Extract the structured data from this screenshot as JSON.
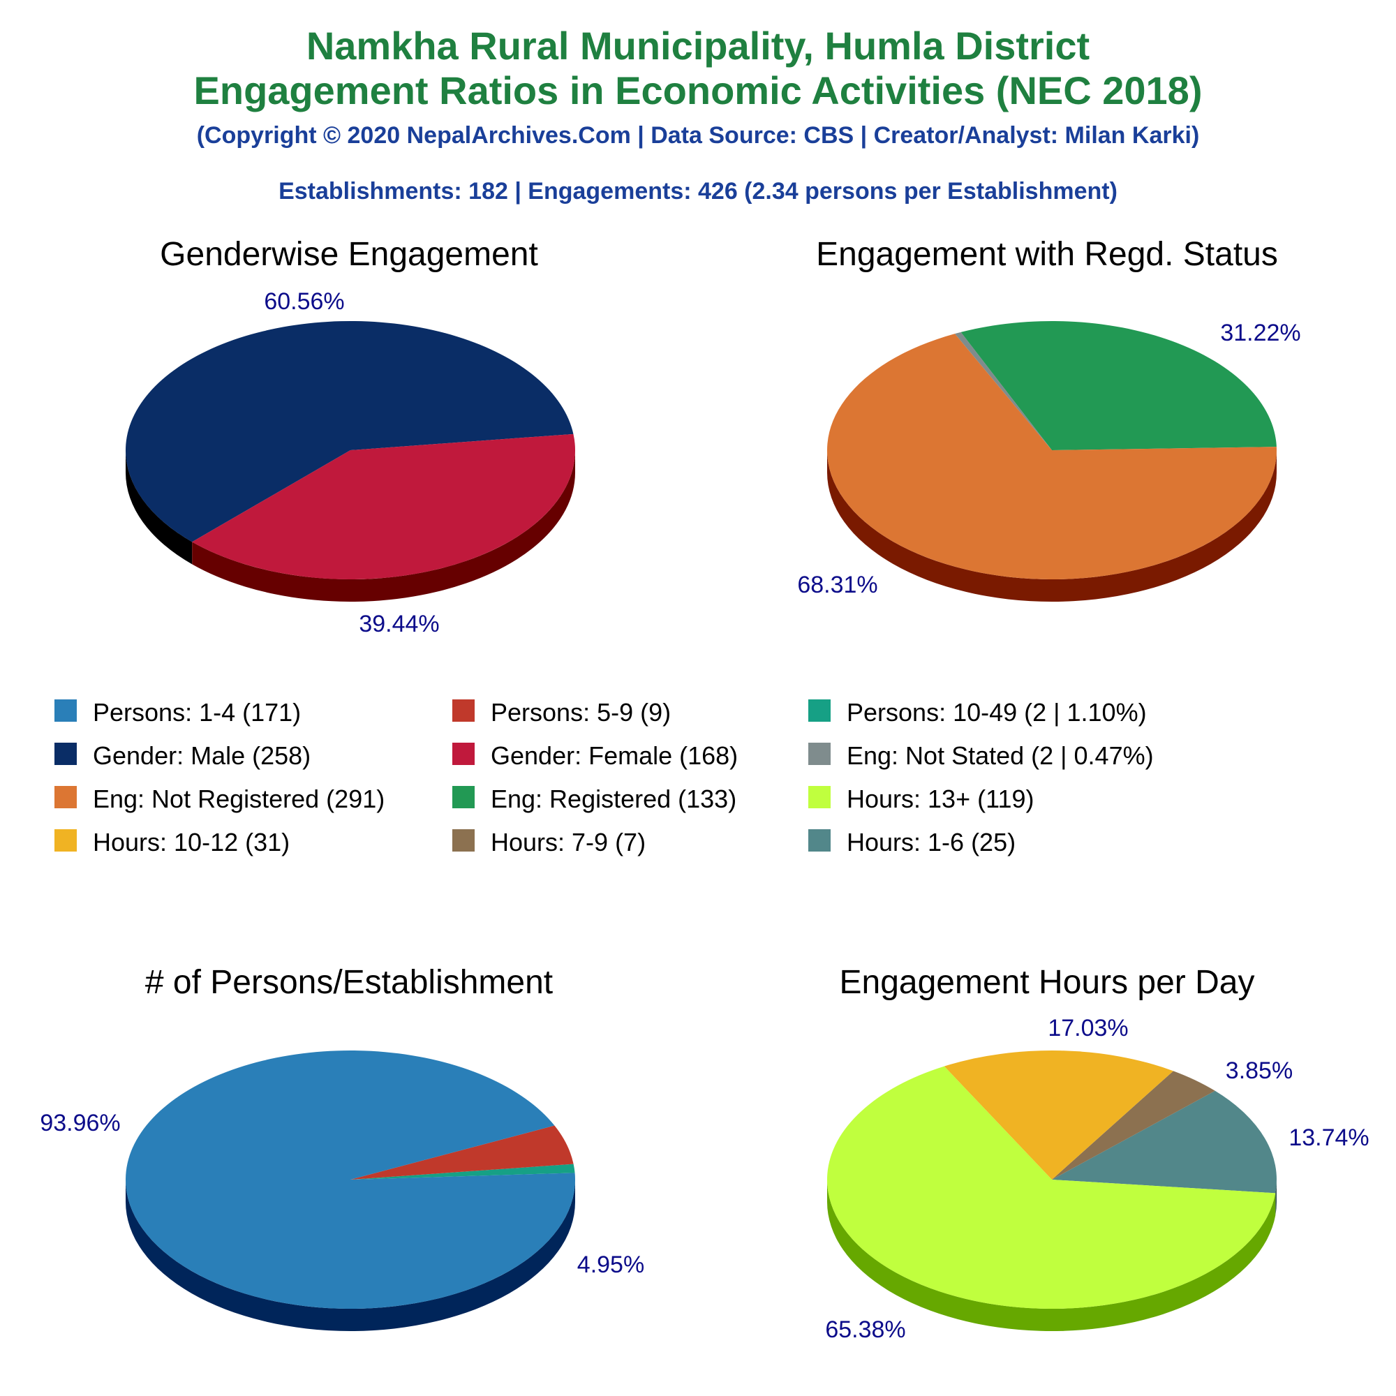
{
  "header": {
    "title_line1": "Namkha Rural Municipality, Humla District",
    "title_line2": "Engagement Ratios in Economic Activities (NEC 2018)",
    "copyright": "(Copyright © 2020 NepalArchives.Com | Data Source: CBS | Creator/Analyst: Milan Karki)",
    "summary": "Establishments: 182 | Engagements: 426 (2.34 persons per Establishment)"
  },
  "legend": [
    {
      "label": "Persons: 1-4 (171)",
      "color": "#2a7fb8"
    },
    {
      "label": "Persons: 5-9 (9)",
      "color": "#c0392b"
    },
    {
      "label": "Persons: 10-49 (2 | 1.10%)",
      "color": "#16a085"
    },
    {
      "label": "Gender: Male (258)",
      "color": "#0a2d66"
    },
    {
      "label": "Gender: Female (168)",
      "color": "#c0193c"
    },
    {
      "label": "Eng: Not Stated (2 | 0.47%)",
      "color": "#7f8c8d"
    },
    {
      "label": "Eng: Not Registered (291)",
      "color": "#dc7633"
    },
    {
      "label": "Eng: Registered (133)",
      "color": "#229954"
    },
    {
      "label": "Hours: 13+ (119)",
      "color": "#c0ff3e"
    },
    {
      "label": "Hours: 10-12 (31)",
      "color": "#f0b323"
    },
    {
      "label": "Hours: 7-9 (7)",
      "color": "#8c7150"
    },
    {
      "label": "Hours: 1-6 (25)",
      "color": "#52878a"
    }
  ],
  "chart_data": [
    {
      "type": "pie",
      "title": "Genderwise Engagement",
      "slices": [
        {
          "category": "Gender: Male",
          "value": 258,
          "percent": 60.56,
          "label": "60.56%",
          "color": "#0a2d66",
          "side": "#000000"
        },
        {
          "category": "Gender: Female",
          "value": 168,
          "percent": 39.44,
          "label": "39.44%",
          "color": "#c0193c",
          "side": "#660000"
        }
      ]
    },
    {
      "type": "pie",
      "title": "Engagement with Regd. Status",
      "slices": [
        {
          "category": "Eng: Registered",
          "value": 133,
          "percent": 31.22,
          "label": "31.22%",
          "color": "#229954",
          "side": "#0f5a2c"
        },
        {
          "category": "Eng: Not Stated",
          "value": 2,
          "percent": 0.47,
          "label": "",
          "color": "#7f8c8d",
          "side": "#4a5253"
        },
        {
          "category": "Eng: Not Registered",
          "value": 291,
          "percent": 68.31,
          "label": "68.31%",
          "color": "#dc7633",
          "side": "#7a1a00"
        }
      ]
    },
    {
      "type": "pie",
      "title": "# of Persons/Establishment",
      "slices": [
        {
          "category": "Persons: 10-49",
          "value": 2,
          "percent": 1.1,
          "label": "",
          "color": "#16a085",
          "side": "#0b5a4a"
        },
        {
          "category": "Persons: 5-9",
          "value": 9,
          "percent": 4.95,
          "label": "4.95%",
          "color": "#c0392b",
          "side": "#6a0000"
        },
        {
          "category": "Persons: 1-4",
          "value": 171,
          "percent": 93.96,
          "label": "93.96%",
          "color": "#2a7fb8",
          "side": "#00255a"
        }
      ]
    },
    {
      "type": "pie",
      "title": "Engagement Hours per Day",
      "slices": [
        {
          "category": "Hours: 1-6",
          "value": 25,
          "percent": 13.74,
          "label": "13.74%",
          "color": "#52878a",
          "side": "#2a4c4e"
        },
        {
          "category": "Hours: 7-9",
          "value": 7,
          "percent": 3.85,
          "label": "3.85%",
          "color": "#8c7150",
          "side": "#4e3d28"
        },
        {
          "category": "Hours: 10-12",
          "value": 31,
          "percent": 17.03,
          "label": "17.03%",
          "color": "#f0b323",
          "side": "#8a6000"
        },
        {
          "category": "Hours: 13+",
          "value": 119,
          "percent": 65.38,
          "label": "65.38%",
          "color": "#c0ff3e",
          "side": "#66a800"
        }
      ]
    }
  ]
}
